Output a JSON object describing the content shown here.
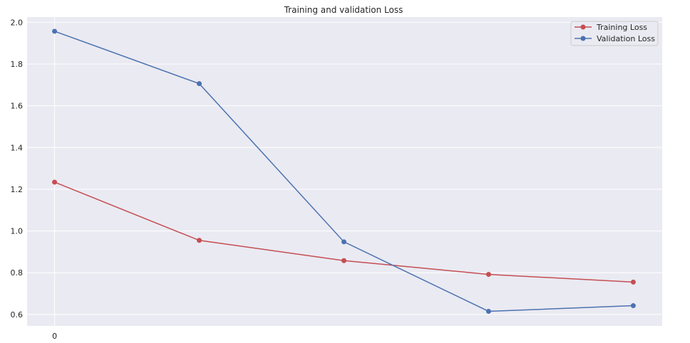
{
  "chart_data": {
    "type": "line",
    "title": "Training and validation Loss",
    "xlabel": "",
    "ylabel": "",
    "x": [
      0,
      1,
      2,
      3,
      4
    ],
    "x_tick_values": [
      0
    ],
    "x_tick_labels": [
      "0"
    ],
    "xlim": [
      -0.19,
      4.2
    ],
    "ylim": [
      0.545,
      2.025
    ],
    "y_ticks": [
      0.6,
      0.8,
      1.0,
      1.2,
      1.4,
      1.6,
      1.8,
      2.0
    ],
    "y_tick_labels": [
      "0.6",
      "0.8",
      "1.0",
      "1.2",
      "1.4",
      "1.6",
      "1.8",
      "2.0"
    ],
    "grid": true,
    "legend_position": "top-right",
    "series": [
      {
        "name": "Training Loss",
        "color": "#c44e52",
        "marker": "circle",
        "values": [
          1.234,
          0.955,
          0.858,
          0.792,
          0.755
        ]
      },
      {
        "name": "Validation Loss",
        "color": "#4c72b0",
        "marker": "circle",
        "values": [
          1.957,
          1.706,
          0.948,
          0.615,
          0.642
        ]
      }
    ]
  }
}
